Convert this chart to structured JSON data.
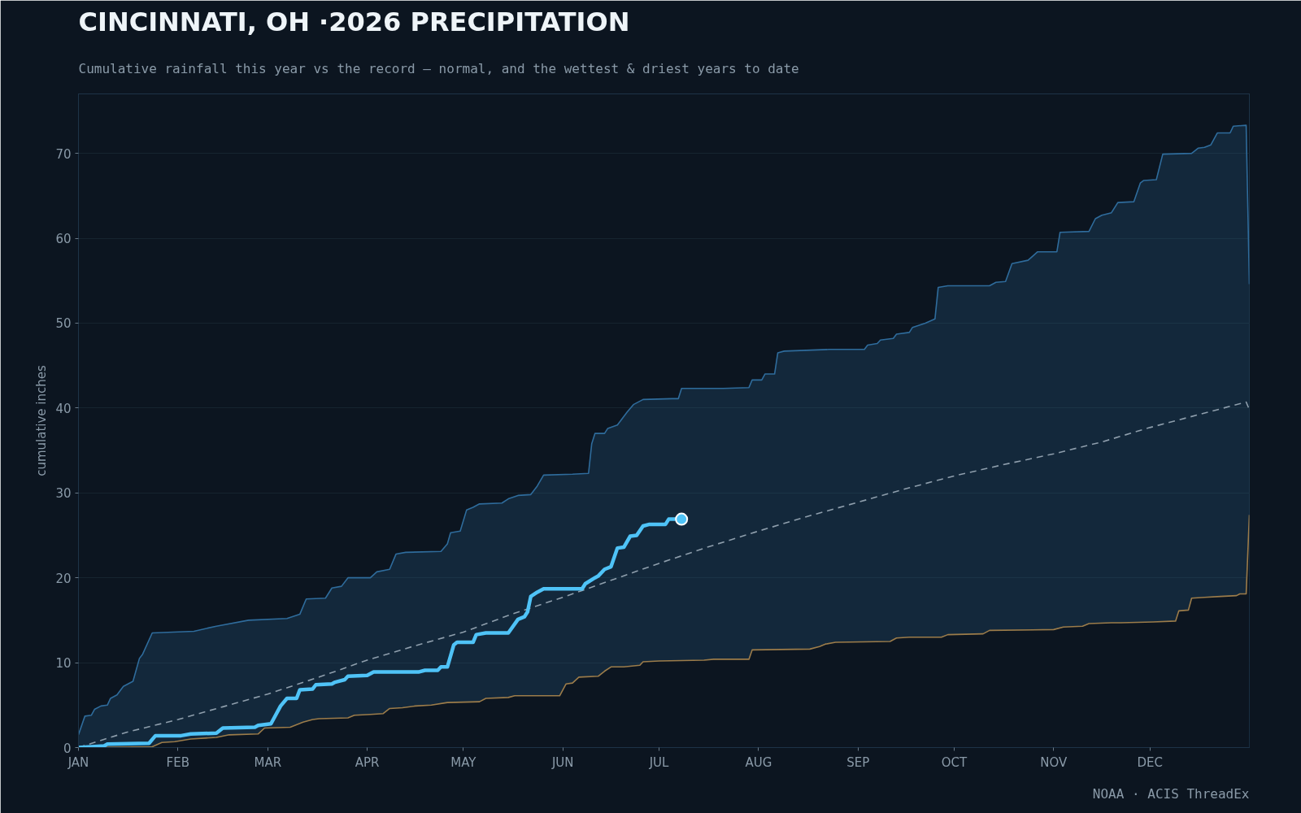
{
  "chart_data": {
    "type": "line",
    "title": "CINCINNATI, OH ·2026 PRECIPITATION",
    "subtitle": "Cumulative rainfall this year vs the record — normal, and the wettest & driest years to date",
    "ylabel": "cumulative inches",
    "annotations": [
      "NOAA · ACIS ThreadEx"
    ],
    "xlim": [
      "2026-01-01",
      "2027-01-01"
    ],
    "xticks": [
      {
        "value": "2026-01-01",
        "label": "JAN"
      },
      {
        "value": "2026-02-01",
        "label": "FEB"
      },
      {
        "value": "2026-03-01",
        "label": "MAR"
      },
      {
        "value": "2026-04-01",
        "label": "APR"
      },
      {
        "value": "2026-05-01",
        "label": "MAY"
      },
      {
        "value": "2026-06-01",
        "label": "JUN"
      },
      {
        "value": "2026-07-01",
        "label": "JUL"
      },
      {
        "value": "2026-08-01",
        "label": "AUG"
      },
      {
        "value": "2026-09-01",
        "label": "SEP"
      },
      {
        "value": "2026-10-01",
        "label": "OCT"
      },
      {
        "value": "2026-11-01",
        "label": "NOV"
      },
      {
        "value": "2026-12-01",
        "label": "DEC"
      }
    ],
    "ylim": [
      0,
      77
    ],
    "yticks": [
      0,
      10,
      20,
      30,
      40,
      50,
      60,
      70
    ],
    "grid": "y",
    "series": [
      {
        "type": "area",
        "color": "#2f6c9c",
        "x": [
          "2026-01-01",
          "2026-01-03",
          "2026-01-05",
          "2026-01-06",
          "2026-01-08",
          "2026-01-10",
          "2026-01-11",
          "2026-01-13",
          "2026-01-15",
          "2026-01-18",
          "2026-01-20",
          "2026-01-21",
          "2026-01-24",
          "2026-02-06",
          "2026-02-13",
          "2026-02-23",
          "2026-03-07",
          "2026-03-11",
          "2026-03-13",
          "2026-03-19",
          "2026-03-21",
          "2026-03-24",
          "2026-03-26",
          "2026-04-02",
          "2026-04-04",
          "2026-04-08",
          "2026-04-10",
          "2026-04-13",
          "2026-04-24",
          "2026-04-26",
          "2026-04-27",
          "2026-04-30",
          "2026-05-02",
          "2026-05-04",
          "2026-05-06",
          "2026-05-13",
          "2026-05-15",
          "2026-05-18",
          "2026-05-22",
          "2026-05-24",
          "2026-05-26",
          "2026-06-04",
          "2026-06-09",
          "2026-06-10",
          "2026-06-11",
          "2026-06-14",
          "2026-06-15",
          "2026-06-18",
          "2026-06-21",
          "2026-06-23",
          "2026-06-26",
          "2026-07-05",
          "2026-07-07",
          "2026-07-08",
          "2026-07-21",
          "2026-07-29",
          "2026-07-30",
          "2026-08-02",
          "2026-08-03",
          "2026-08-06",
          "2026-08-07",
          "2026-08-09",
          "2026-08-23",
          "2026-09-03",
          "2026-09-04",
          "2026-09-07",
          "2026-09-08",
          "2026-09-12",
          "2026-09-13",
          "2026-09-17",
          "2026-09-18",
          "2026-09-22",
          "2026-09-25",
          "2026-09-26",
          "2026-09-29",
          "2026-10-12",
          "2026-10-14",
          "2026-10-17",
          "2026-10-19",
          "2026-10-24",
          "2026-10-27",
          "2026-11-02",
          "2026-11-03",
          "2026-11-12",
          "2026-11-14",
          "2026-11-16",
          "2026-11-19",
          "2026-11-21",
          "2026-11-26",
          "2026-11-28",
          "2026-11-29",
          "2026-12-03",
          "2026-12-05",
          "2026-12-14",
          "2026-12-16",
          "2026-12-18",
          "2026-12-20",
          "2026-12-22",
          "2026-12-26",
          "2026-12-27",
          "2026-12-31",
          "2027-01-01"
        ],
        "values": [
          1.5,
          3.7,
          3.8,
          4.5,
          4.9,
          5.0,
          5.8,
          6.2,
          7.2,
          7.8,
          10.5,
          11.0,
          13.5,
          13.7,
          14.3,
          15.0,
          15.2,
          15.7,
          17.5,
          17.6,
          18.8,
          19.0,
          20.0,
          20.0,
          20.7,
          21.0,
          22.8,
          23.0,
          23.1,
          24.0,
          25.3,
          25.5,
          28.0,
          28.3,
          28.7,
          28.8,
          29.3,
          29.7,
          29.8,
          30.8,
          32.1,
          32.2,
          32.3,
          35.8,
          37.0,
          37.0,
          37.6,
          38.0,
          39.5,
          40.4,
          41.0,
          41.1,
          41.1,
          42.3,
          42.3,
          42.4,
          43.3,
          43.3,
          44.0,
          44.0,
          46.5,
          46.7,
          46.9,
          46.9,
          47.4,
          47.6,
          48.0,
          48.2,
          48.7,
          48.9,
          49.5,
          50.0,
          50.5,
          54.2,
          54.4,
          54.4,
          54.8,
          54.9,
          57.0,
          57.4,
          58.4,
          58.4,
          60.7,
          60.8,
          62.3,
          62.7,
          63.0,
          64.2,
          64.3,
          66.5,
          66.8,
          66.9,
          69.9,
          70.0,
          70.6,
          70.7,
          71.0,
          72.4,
          72.4,
          73.2,
          73.3,
          54.6
        ]
      },
      {
        "type": "area",
        "color": "#9c7c4a",
        "x": [
          "2026-01-01",
          "2026-01-24",
          "2026-01-27",
          "2026-01-31",
          "2026-02-05",
          "2026-02-13",
          "2026-02-17",
          "2026-02-26",
          "2026-02-28",
          "2026-03-08",
          "2026-03-12",
          "2026-03-15",
          "2026-03-17",
          "2026-03-26",
          "2026-03-28",
          "2026-04-02",
          "2026-04-06",
          "2026-04-08",
          "2026-04-12",
          "2026-04-16",
          "2026-04-21",
          "2026-04-26",
          "2026-05-06",
          "2026-05-08",
          "2026-05-15",
          "2026-05-17",
          "2026-05-31",
          "2026-06-02",
          "2026-06-04",
          "2026-06-06",
          "2026-06-12",
          "2026-06-14",
          "2026-06-16",
          "2026-06-20",
          "2026-06-25",
          "2026-06-26",
          "2026-07-01",
          "2026-07-15",
          "2026-07-18",
          "2026-07-29",
          "2026-07-30",
          "2026-08-17",
          "2026-08-20",
          "2026-08-22",
          "2026-08-25",
          "2026-09-11",
          "2026-09-13",
          "2026-09-17",
          "2026-09-27",
          "2026-09-29",
          "2026-10-10",
          "2026-10-12",
          "2026-11-01",
          "2026-11-04",
          "2026-11-10",
          "2026-11-12",
          "2026-11-19",
          "2026-11-22",
          "2026-12-02",
          "2026-12-09",
          "2026-12-10",
          "2026-12-13",
          "2026-12-14",
          "2026-12-18",
          "2026-12-23",
          "2026-12-28",
          "2026-12-29",
          "2026-12-31",
          "2027-01-01"
        ],
        "values": [
          0,
          0.1,
          0.6,
          0.7,
          1.0,
          1.2,
          1.5,
          1.6,
          2.3,
          2.4,
          3.0,
          3.3,
          3.4,
          3.5,
          3.8,
          3.9,
          4.0,
          4.6,
          4.7,
          4.9,
          5.0,
          5.3,
          5.4,
          5.8,
          5.9,
          6.1,
          6.1,
          7.5,
          7.6,
          8.3,
          8.4,
          9.0,
          9.5,
          9.5,
          9.7,
          10.1,
          10.2,
          10.3,
          10.4,
          10.4,
          11.5,
          11.6,
          11.9,
          12.2,
          12.4,
          12.5,
          12.9,
          13.0,
          13.0,
          13.3,
          13.4,
          13.8,
          13.9,
          14.2,
          14.3,
          14.6,
          14.7,
          14.7,
          14.8,
          14.9,
          16.1,
          16.2,
          17.6,
          17.7,
          17.8,
          17.9,
          18.1,
          18.1,
          27.4
        ]
      },
      {
        "color": "#8e9eac",
        "line_style": "dashed",
        "x": [
          "2026-01-01",
          "2026-01-16",
          "2026-02-01",
          "2026-02-15",
          "2026-03-01",
          "2026-03-17",
          "2026-04-01",
          "2026-04-16",
          "2026-05-01",
          "2026-05-16",
          "2026-06-01",
          "2026-06-16",
          "2026-07-01",
          "2026-07-16",
          "2026-08-01",
          "2026-08-16",
          "2026-09-01",
          "2026-09-16",
          "2026-10-01",
          "2026-10-16",
          "2026-11-01",
          "2026-11-16",
          "2026-12-01",
          "2026-12-16",
          "2026-12-31",
          "2027-01-01"
        ],
        "values": [
          0,
          1.8,
          3.3,
          4.8,
          6.3,
          8.3,
          10.3,
          12.0,
          13.6,
          15.7,
          17.7,
          19.7,
          21.7,
          23.6,
          25.5,
          27.2,
          28.9,
          30.5,
          32.0,
          33.3,
          34.6,
          36.0,
          37.7,
          39.2,
          40.7,
          39.8
        ]
      },
      {
        "color": "#4fc3f7",
        "x": [
          "2026-01-01",
          "2026-01-09",
          "2026-01-10",
          "2026-01-23",
          "2026-01-25",
          "2026-02-02",
          "2026-02-05",
          "2026-02-13",
          "2026-02-15",
          "2026-02-25",
          "2026-02-26",
          "2026-03-02",
          "2026-03-03",
          "2026-03-05",
          "2026-03-07",
          "2026-03-10",
          "2026-03-11",
          "2026-03-15",
          "2026-03-16",
          "2026-03-21",
          "2026-03-22",
          "2026-03-25",
          "2026-03-26",
          "2026-04-01",
          "2026-04-03",
          "2026-04-17",
          "2026-04-19",
          "2026-04-23",
          "2026-04-24",
          "2026-04-26",
          "2026-04-28",
          "2026-04-29",
          "2026-05-04",
          "2026-05-05",
          "2026-05-08",
          "2026-05-15",
          "2026-05-18",
          "2026-05-20",
          "2026-05-21",
          "2026-05-22",
          "2026-05-24",
          "2026-05-26",
          "2026-06-07",
          "2026-06-08",
          "2026-06-11",
          "2026-06-12",
          "2026-06-14",
          "2026-06-16",
          "2026-06-18",
          "2026-06-20",
          "2026-06-22",
          "2026-06-24",
          "2026-06-26",
          "2026-06-28",
          "2026-07-03",
          "2026-07-04",
          "2026-07-08"
        ],
        "values": [
          0,
          0.2,
          0.4,
          0.5,
          1.4,
          1.4,
          1.6,
          1.7,
          2.3,
          2.4,
          2.6,
          2.8,
          3.5,
          4.9,
          5.8,
          5.8,
          6.8,
          6.9,
          7.4,
          7.5,
          7.7,
          8.0,
          8.4,
          8.5,
          8.9,
          8.9,
          9.1,
          9.1,
          9.5,
          9.5,
          12.1,
          12.4,
          12.4,
          13.3,
          13.5,
          13.5,
          15.1,
          15.4,
          16.0,
          17.8,
          18.3,
          18.7,
          18.7,
          19.3,
          20.0,
          20.2,
          21.0,
          21.3,
          23.5,
          23.6,
          24.9,
          25.0,
          26.1,
          26.3,
          26.3,
          26.9,
          26.9
        ]
      },
      {
        "type": "scatter",
        "color": "#4fc3f7",
        "x": [
          "2026-07-08"
        ],
        "values": [
          26.9
        ]
      }
    ]
  }
}
